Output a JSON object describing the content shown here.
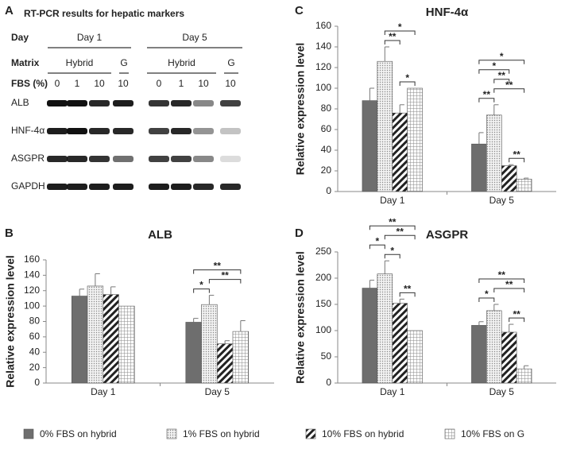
{
  "gel_panel": {
    "panel": "A",
    "title": "RT-PCR results for hepatic markers",
    "day_label": "Day",
    "days": [
      "Day 1",
      "Day 5"
    ],
    "matrix_label": "Matrix",
    "matrices": [
      "Hybrid",
      "G",
      "Hybrid",
      "G"
    ],
    "fbs_label": "FBS (%)",
    "fbs": [
      "0",
      "1",
      "10",
      "10",
      "0",
      "1",
      "10",
      "10"
    ],
    "genes": [
      "ALB",
      "HNF-4α",
      "ASGPR",
      "GAPDH"
    ],
    "band_intensity": [
      [
        1,
        1,
        0.9,
        0.95,
        0.85,
        0.9,
        0.5,
        0.8
      ],
      [
        0.95,
        1,
        0.9,
        0.9,
        0.8,
        0.9,
        0.45,
        0.25
      ],
      [
        0.9,
        0.9,
        0.85,
        0.6,
        0.8,
        0.8,
        0.5,
        0.15
      ],
      [
        0.95,
        0.95,
        0.95,
        0.95,
        0.95,
        0.95,
        0.9,
        0.9
      ]
    ]
  },
  "legend": [
    {
      "name": "0% FBS on hybrid",
      "pattern": "solid",
      "color": "#6e6e6e"
    },
    {
      "name": "1% FBS on hybrid",
      "pattern": "dots",
      "color": "#d9d9d9"
    },
    {
      "name": "10% FBS on hybrid",
      "pattern": "hatch",
      "color": "#222222"
    },
    {
      "name": "10% FBS on G",
      "pattern": "grid",
      "color": "#bdbdbd"
    }
  ],
  "chart_data": [
    {
      "panel": "B",
      "type": "bar",
      "title": "ALB",
      "ylabel": "Relative expression level",
      "categories": [
        "Day 1",
        "Day 5"
      ],
      "ylim": [
        0,
        160
      ],
      "yticks": [
        0,
        20,
        40,
        60,
        80,
        100,
        120,
        140,
        160
      ],
      "series": [
        {
          "values": [
            113,
            79
          ],
          "errors": [
            9,
            5
          ]
        },
        {
          "values": [
            126,
            102
          ],
          "errors": [
            16,
            12
          ]
        },
        {
          "values": [
            115,
            51
          ],
          "errors": [
            10,
            4
          ]
        },
        {
          "values": [
            100,
            67
          ],
          "errors": [
            null,
            14
          ]
        }
      ],
      "annotations": [
        {
          "group": 1,
          "bars": [
            0,
            1
          ],
          "label": "*"
        },
        {
          "group": 1,
          "bars": [
            1,
            3
          ],
          "label": "**"
        },
        {
          "group": 1,
          "bars": [
            0,
            3
          ],
          "label": "**"
        }
      ]
    },
    {
      "panel": "C",
      "type": "bar",
      "title": "HNF-4α",
      "ylabel": "Relative expression level",
      "categories": [
        "Day 1",
        "Day 5"
      ],
      "ylim": [
        0,
        160
      ],
      "yticks": [
        0,
        20,
        40,
        60,
        80,
        100,
        120,
        140,
        160
      ],
      "series": [
        {
          "values": [
            88,
            46
          ],
          "errors": [
            12,
            11
          ]
        },
        {
          "values": [
            126,
            74
          ],
          "errors": [
            14,
            10
          ]
        },
        {
          "values": [
            76,
            25
          ],
          "errors": [
            8,
            1
          ]
        },
        {
          "values": [
            100,
            12
          ],
          "errors": [
            null,
            1
          ]
        }
      ],
      "annotations": [
        {
          "group": 0,
          "bars": [
            2,
            3
          ],
          "label": "*"
        },
        {
          "group": 0,
          "bars": [
            1,
            2
          ],
          "label": "**"
        },
        {
          "group": 0,
          "bars": [
            1,
            3
          ],
          "label": "*"
        },
        {
          "group": 1,
          "bars": [
            2,
            3
          ],
          "label": "**"
        },
        {
          "group": 1,
          "bars": [
            0,
            1
          ],
          "label": "**"
        },
        {
          "group": 1,
          "bars": [
            1,
            3
          ],
          "label": "**"
        },
        {
          "group": 1,
          "bars": [
            1,
            2
          ],
          "label": "**"
        },
        {
          "group": 1,
          "bars": [
            0,
            2
          ],
          "label": "*"
        },
        {
          "group": 1,
          "bars": [
            0,
            3
          ],
          "label": "*"
        }
      ]
    },
    {
      "panel": "D",
      "type": "bar",
      "title": "ASGPR",
      "ylabel": "Relative expression level",
      "categories": [
        "Day 1",
        "Day 5"
      ],
      "ylim": [
        0,
        250
      ],
      "yticks": [
        0,
        50,
        100,
        150,
        200,
        250
      ],
      "series": [
        {
          "values": [
            181,
            110
          ],
          "errors": [
            15,
            7
          ]
        },
        {
          "values": [
            208,
            138
          ],
          "errors": [
            25,
            12
          ]
        },
        {
          "values": [
            152,
            97
          ],
          "errors": [
            8,
            15
          ]
        },
        {
          "values": [
            100,
            27
          ],
          "errors": [
            null,
            6
          ]
        }
      ],
      "annotations": [
        {
          "group": 0,
          "bars": [
            2,
            3
          ],
          "label": "**"
        },
        {
          "group": 0,
          "bars": [
            1,
            2
          ],
          "label": "*"
        },
        {
          "group": 0,
          "bars": [
            0,
            1
          ],
          "label": "*"
        },
        {
          "group": 0,
          "bars": [
            1,
            3
          ],
          "label": "**"
        },
        {
          "group": 0,
          "bars": [
            0,
            3
          ],
          "label": "**"
        },
        {
          "group": 1,
          "bars": [
            2,
            3
          ],
          "label": "**"
        },
        {
          "group": 1,
          "bars": [
            0,
            1
          ],
          "label": "*"
        },
        {
          "group": 1,
          "bars": [
            1,
            3
          ],
          "label": "**"
        },
        {
          "group": 1,
          "bars": [
            0,
            3
          ],
          "label": "**"
        }
      ]
    }
  ]
}
